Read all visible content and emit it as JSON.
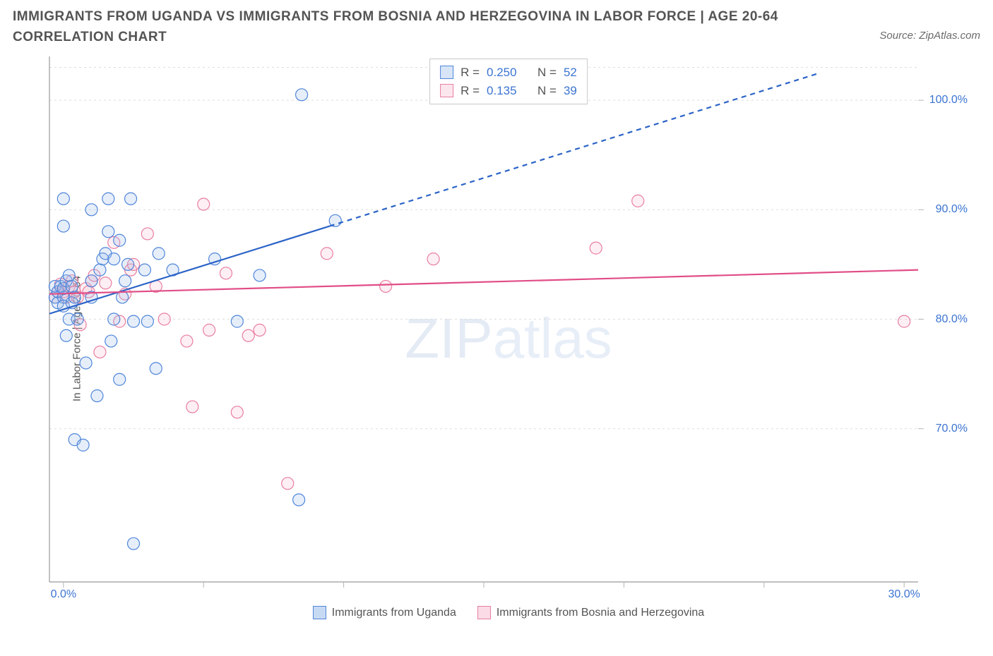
{
  "title": "IMMIGRANTS FROM UGANDA VS IMMIGRANTS FROM BOSNIA AND HERZEGOVINA IN LABOR FORCE | AGE 20-64 CORRELATION CHART",
  "source_prefix": "Source: ",
  "source_link": "ZipAtlas.com",
  "y_axis_label": "In Labor Force | Age 20-64",
  "watermark_a": "ZIP",
  "watermark_b": "atlas",
  "chart": {
    "type": "scatter",
    "background_color": "#ffffff",
    "axis_color": "#9a9a9a",
    "grid_color": "#dddddd",
    "grid_dash": "3,4",
    "tick_color": "#b5b5b5",
    "tick_label_color": "#3b74d1",
    "text_color": "#545454",
    "xlim": [
      -0.5,
      30.5
    ],
    "ylim": [
      56,
      104
    ],
    "x_ticks": [
      0,
      5,
      10,
      15,
      20,
      25,
      30
    ],
    "x_tick_labels": {
      "0": "0.0%",
      "30": "30.0%"
    },
    "y_ticks": [
      70,
      80,
      90,
      100
    ],
    "y_tick_labels": {
      "70": "70.0%",
      "80": "80.0%",
      "90": "90.0%",
      "100": "100.0%"
    },
    "top_gridline_y": 103,
    "marker_radius": 8.5,
    "marker_stroke_width": 1.2,
    "marker_fill_opacity": 0.25,
    "series": [
      {
        "name": "Immigrants from Uganda",
        "color_stroke": "#4f86d9",
        "color_fill": "#9cbdea",
        "R": "0.250",
        "N": "52",
        "trend": {
          "x1": -0.5,
          "y1": 80.5,
          "x2": 9.5,
          "y2": 88.5,
          "extend_x2": 27,
          "extend_y2": 102.5,
          "color": "#2b63c7",
          "width": 2.2,
          "dash": "7,6"
        },
        "points": [
          [
            -0.3,
            82
          ],
          [
            -0.3,
            83
          ],
          [
            -0.2,
            81.5
          ],
          [
            -0.2,
            82.5
          ],
          [
            -0.1,
            83
          ],
          [
            0,
            82
          ],
          [
            0,
            82.8
          ],
          [
            0,
            81.2
          ],
          [
            0.1,
            83.5
          ],
          [
            0.2,
            84
          ],
          [
            0,
            88.5
          ],
          [
            0.0,
            91
          ],
          [
            0.1,
            78.5
          ],
          [
            0.2,
            80
          ],
          [
            0.3,
            81.5
          ],
          [
            0.3,
            83
          ],
          [
            0.4,
            82
          ],
          [
            0.5,
            80
          ],
          [
            0.4,
            69
          ],
          [
            0.7,
            68.5
          ],
          [
            0.8,
            76
          ],
          [
            1.0,
            90
          ],
          [
            1.0,
            82
          ],
          [
            1.0,
            83.5
          ],
          [
            1.2,
            73
          ],
          [
            1.3,
            84.5
          ],
          [
            1.4,
            85.5
          ],
          [
            1.5,
            86
          ],
          [
            1.6,
            91
          ],
          [
            1.6,
            88
          ],
          [
            1.7,
            78
          ],
          [
            1.8,
            85.5
          ],
          [
            1.8,
            80
          ],
          [
            2.0,
            87.2
          ],
          [
            2.0,
            74.5
          ],
          [
            2.1,
            82
          ],
          [
            2.2,
            83.5
          ],
          [
            2.3,
            85
          ],
          [
            2.4,
            91
          ],
          [
            2.5,
            79.8
          ],
          [
            2.5,
            59.5
          ],
          [
            2.9,
            84.5
          ],
          [
            3.0,
            79.8
          ],
          [
            3.3,
            75.5
          ],
          [
            3.4,
            86
          ],
          [
            3.9,
            84.5
          ],
          [
            5.4,
            85.5
          ],
          [
            6.2,
            79.8
          ],
          [
            7.0,
            84
          ],
          [
            8.4,
            63.5
          ],
          [
            8.5,
            100.5
          ],
          [
            9.7,
            89
          ]
        ]
      },
      {
        "name": "Immigrants from Bosnia and Herzegovina",
        "color_stroke": "#e97ea1",
        "color_fill": "#f6c0d1",
        "R": "0.135",
        "N": "39",
        "trend": {
          "x1": -0.5,
          "y1": 82.3,
          "x2": 30.5,
          "y2": 84.5,
          "color": "#e14d87",
          "width": 2.2
        },
        "points": [
          [
            -0.3,
            82
          ],
          [
            -0.2,
            82.5
          ],
          [
            -0.1,
            83.2
          ],
          [
            0,
            82.5
          ],
          [
            0.1,
            82
          ],
          [
            0.2,
            83
          ],
          [
            0.3,
            83.5
          ],
          [
            0.4,
            82.5
          ],
          [
            0.5,
            82
          ],
          [
            0.6,
            79.5
          ],
          [
            0.8,
            82.8
          ],
          [
            0.9,
            82.5
          ],
          [
            1.0,
            83.5
          ],
          [
            1.1,
            84
          ],
          [
            1.3,
            77
          ],
          [
            1.5,
            83.3
          ],
          [
            1.8,
            87
          ],
          [
            2.0,
            79.8
          ],
          [
            2.2,
            82.3
          ],
          [
            2.4,
            84.5
          ],
          [
            2.5,
            85
          ],
          [
            3.0,
            87.8
          ],
          [
            3.3,
            83
          ],
          [
            3.6,
            80
          ],
          [
            4.4,
            78
          ],
          [
            4.6,
            72
          ],
          [
            5.0,
            90.5
          ],
          [
            5.2,
            79
          ],
          [
            5.8,
            84.2
          ],
          [
            6.2,
            71.5
          ],
          [
            6.6,
            78.5
          ],
          [
            7.0,
            79
          ],
          [
            8.0,
            65
          ],
          [
            9.4,
            86
          ],
          [
            11.5,
            83
          ],
          [
            13.2,
            85.5
          ],
          [
            19,
            86.5
          ],
          [
            20.5,
            90.8
          ],
          [
            30,
            79.8
          ]
        ]
      }
    ]
  },
  "legend_bottom": [
    {
      "label": "Immigrants from Uganda",
      "stroke": "#4f86d9",
      "fill": "#c7daf4"
    },
    {
      "label": "Immigrants from Bosnia and Herzegovina",
      "stroke": "#e97ea1",
      "fill": "#fadbe6"
    }
  ]
}
